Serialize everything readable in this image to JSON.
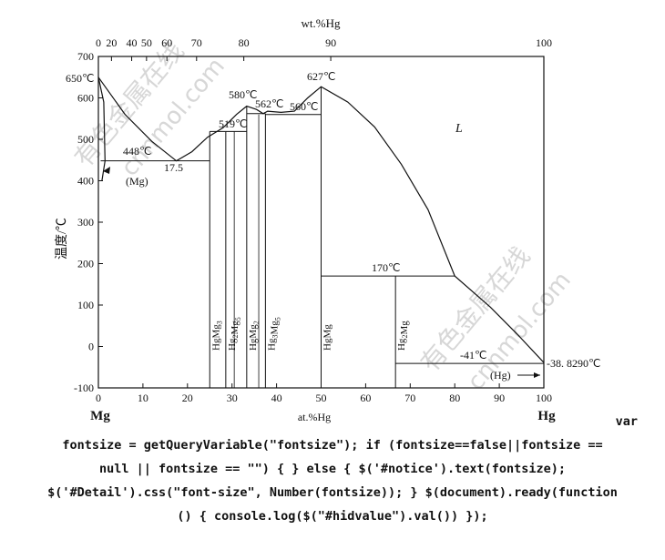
{
  "chart_data": {
    "type": "line",
    "title": "",
    "top_axis_label": "wt.%Hg",
    "top_ticks": [
      "0",
      "20",
      "40",
      "50",
      "60",
      "70",
      "80",
      "90",
      "100"
    ],
    "xlabel": "at.%Hg",
    "ylabel": "温度/℃",
    "xlim": [
      0,
      100
    ],
    "ylim": [
      -100,
      700
    ],
    "x_ticks": [
      "0",
      "10",
      "20",
      "30",
      "40",
      "50",
      "60",
      "70",
      "80",
      "90",
      "100"
    ],
    "y_ticks": [
      "-100",
      "0",
      "100",
      "200",
      "300",
      "400",
      "500",
      "600",
      "700"
    ],
    "left_element": "Mg",
    "right_element": "Hg",
    "series": [
      {
        "name": "",
        "values": [
          [
            0,
            650
          ],
          [
            6,
            560
          ],
          [
            12,
            495
          ],
          [
            17.5,
            448
          ],
          [
            21,
            470
          ],
          [
            24.5,
            505
          ],
          [
            28,
            528
          ],
          [
            31,
            560
          ],
          [
            33.3,
            580
          ],
          [
            35.5,
            572
          ],
          [
            37,
            562
          ],
          [
            38,
            568
          ],
          [
            41,
            565
          ],
          [
            44,
            568
          ],
          [
            47,
            600
          ],
          [
            50,
            627
          ],
          [
            56,
            590
          ],
          [
            62,
            530
          ],
          [
            68,
            440
          ],
          [
            74,
            330
          ],
          [
            80,
            170
          ],
          [
            88,
            95
          ],
          [
            94,
            30
          ],
          [
            100,
            -38.829
          ]
        ]
      },
      {
        "name": "",
        "values": [
          [
            0,
            650
          ],
          [
            1.2,
            590
          ],
          [
            1.5,
            448
          ],
          [
            0.8,
            400
          ]
        ]
      }
    ],
    "eutectics": [
      {
        "label": "448℃",
        "y": 448
      },
      {
        "label": "17.5",
        "x": 17.5
      }
    ],
    "temperature_labels": [
      "650℃",
      "580℃",
      "519℃",
      "562℃",
      "560℃",
      "627℃",
      "170℃",
      "-41℃",
      "-38. 8290℃"
    ],
    "phases": [
      "L",
      "(Mg)",
      "(Hg)"
    ],
    "compounds": [
      {
        "name_html": "HgMg<sub>3</sub>",
        "label": "HgMg3",
        "x": 25
      },
      {
        "name_html": "Hg<sub>2</sub>Mg<sub>5</sub>",
        "label": "Hg2Mg5",
        "x": 28.6
      },
      {
        "name_html": "HgMg<sub>2</sub>",
        "label": "HgMg2",
        "x": 33.3
      },
      {
        "name_html": "Hg<sub>3</sub>Mg<sub>5</sub>",
        "label": "Hg3Mg5",
        "x": 37.5
      },
      {
        "name_html": "HgMg",
        "label": "HgMg",
        "x": 50
      },
      {
        "name_html": "Hg<sub>2</sub>Mg",
        "label": "Hg2Mg",
        "x": 66.7
      }
    ],
    "horizontals": [
      {
        "y": 448,
        "x": [
          0.5,
          25
        ]
      },
      {
        "y": 519,
        "x": [
          25,
          28.6
        ]
      },
      {
        "y": 519,
        "x": [
          28.6,
          33.3
        ]
      },
      {
        "y": 562,
        "x": [
          33.3,
          37.5
        ]
      },
      {
        "y": 560,
        "x": [
          37.5,
          50
        ]
      },
      {
        "y": 170,
        "x": [
          50,
          80
        ]
      },
      {
        "y": -41,
        "x": [
          66.7,
          100
        ]
      }
    ]
  },
  "watermark": {
    "text_cn": "有色金属在线",
    "text_en": "cnnmol.com"
  },
  "code_text": {
    "l0": "var",
    "l1": "fontsize = getQueryVariable(\"fontsize\"); if (fontsize==false||fontsize ==",
    "l2": "null || fontsize == \"\") { } else { $('#notice').text(fontsize);",
    "l3": "$('#Detail').css(\"font-size\", Number(fontsize)); } $(document).ready(function",
    "l4": "() { console.log($(\"#hidvalue\").val()) });"
  }
}
